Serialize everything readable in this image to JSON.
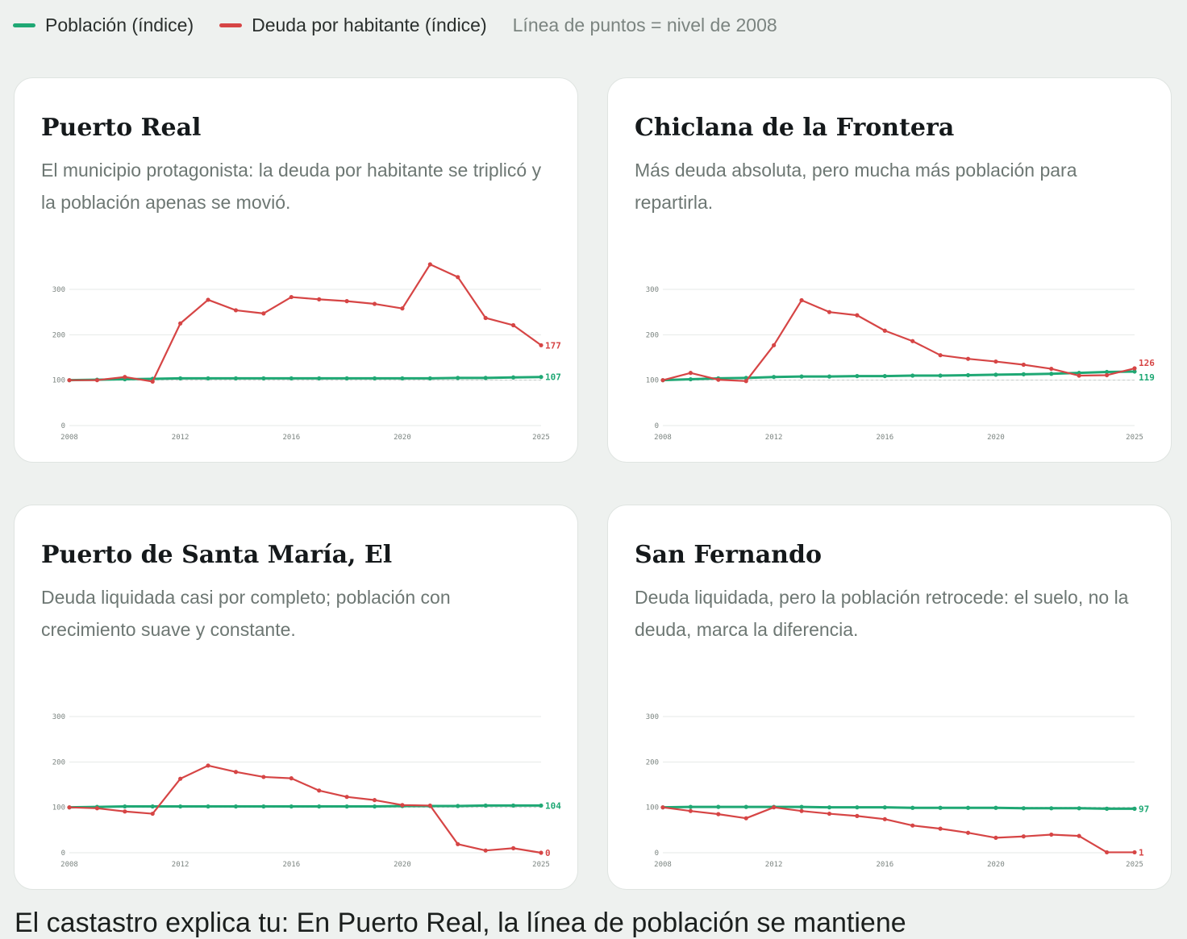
{
  "legend": {
    "poblacion": "Población (índice)",
    "deuda": "Deuda por habitante (índice)",
    "note": "Línea de puntos = nivel de 2008"
  },
  "colors": {
    "poblacion": "#1fa874",
    "deuda": "#d64545",
    "baseline": "#c6ccc9",
    "grid": "#e6e9e7"
  },
  "footer": {
    "text": "El castastro explica tu: En Puerto Real, la línea de población se mantiene"
  },
  "cards": [
    {
      "title": "Puerto Real",
      "subtitle": "El municipio protagonista: la deuda por habitante se triplicó y la población apenas se movió."
    },
    {
      "title": "Chiclana de la Frontera",
      "subtitle": "Más deuda absoluta, pero mucha más población para repartirla."
    },
    {
      "title": "Puerto de Santa María, El",
      "subtitle": "Deuda liquidada casi por completo; población con crecimiento suave y constante."
    },
    {
      "title": "San Fernando",
      "subtitle": "Deuda liquidada, pero la población retrocede: el suelo, no la deuda, marca la diferencia."
    }
  ],
  "chart_data": [
    {
      "type": "line",
      "title": "Puerto Real",
      "x": [
        2008,
        2009,
        2010,
        2011,
        2012,
        2013,
        2014,
        2015,
        2016,
        2017,
        2018,
        2019,
        2020,
        2021,
        2022,
        2023,
        2024,
        2025
      ],
      "xticks": [
        "2008",
        "2012",
        "2016",
        "2020",
        "2025"
      ],
      "yticks": [
        "0",
        "100",
        "200",
        "300"
      ],
      "ylim": [
        0,
        300
      ],
      "baseline": 100,
      "series": [
        {
          "name": "Población (índice)",
          "key": "poblacion",
          "values": [
            100,
            101,
            102,
            103,
            104,
            104,
            104,
            104,
            104,
            104,
            104,
            104,
            104,
            104,
            105,
            105,
            106,
            107
          ],
          "end_label": "107"
        },
        {
          "name": "Deuda por habitante (índice)",
          "key": "deuda",
          "values": [
            100,
            100,
            107,
            97,
            225,
            277,
            254,
            247,
            283,
            278,
            274,
            268,
            258,
            355,
            327,
            237,
            221,
            177
          ],
          "end_label": "177"
        }
      ]
    },
    {
      "type": "line",
      "title": "Chiclana de la Frontera",
      "x": [
        2008,
        2009,
        2010,
        2011,
        2012,
        2013,
        2014,
        2015,
        2016,
        2017,
        2018,
        2019,
        2020,
        2021,
        2022,
        2023,
        2024,
        2025
      ],
      "xticks": [
        "2008",
        "2012",
        "2016",
        "2020",
        "2025"
      ],
      "yticks": [
        "0",
        "100",
        "200",
        "300"
      ],
      "ylim": [
        0,
        300
      ],
      "baseline": 100,
      "series": [
        {
          "name": "Población (índice)",
          "key": "poblacion",
          "values": [
            100,
            102,
            104,
            105,
            107,
            108,
            108,
            109,
            109,
            110,
            110,
            111,
            112,
            113,
            114,
            116,
            118,
            119
          ],
          "end_label": "119"
        },
        {
          "name": "Deuda por habitante (índice)",
          "key": "deuda",
          "values": [
            100,
            116,
            101,
            98,
            177,
            276,
            250,
            243,
            209,
            186,
            155,
            147,
            141,
            134,
            125,
            110,
            111,
            126
          ],
          "end_label": "126"
        }
      ]
    },
    {
      "type": "line",
      "title": "Puerto de Santa María, El",
      "x": [
        2008,
        2009,
        2010,
        2011,
        2012,
        2013,
        2014,
        2015,
        2016,
        2017,
        2018,
        2019,
        2020,
        2021,
        2022,
        2023,
        2024,
        2025
      ],
      "xticks": [
        "2008",
        "2012",
        "2016",
        "2020",
        "2025"
      ],
      "yticks": [
        "0",
        "100",
        "200",
        "300"
      ],
      "ylim": [
        0,
        300
      ],
      "baseline": 100,
      "series": [
        {
          "name": "Población (índice)",
          "key": "poblacion",
          "values": [
            100,
            101,
            102,
            102,
            102,
            102,
            102,
            102,
            102,
            102,
            102,
            102,
            103,
            103,
            103,
            104,
            104,
            104
          ],
          "end_label": "104"
        },
        {
          "name": "Deuda por habitante (índice)",
          "key": "deuda",
          "values": [
            100,
            98,
            91,
            86,
            163,
            192,
            178,
            167,
            164,
            137,
            123,
            116,
            105,
            104,
            19,
            5,
            10,
            0
          ],
          "end_label": "0"
        }
      ]
    },
    {
      "type": "line",
      "title": "San Fernando",
      "x": [
        2008,
        2009,
        2010,
        2011,
        2012,
        2013,
        2014,
        2015,
        2016,
        2017,
        2018,
        2019,
        2020,
        2021,
        2022,
        2023,
        2024,
        2025
      ],
      "xticks": [
        "2008",
        "2012",
        "2016",
        "2020",
        "2025"
      ],
      "yticks": [
        "0",
        "100",
        "200",
        "300"
      ],
      "ylim": [
        0,
        300
      ],
      "baseline": 100,
      "series": [
        {
          "name": "Población (índice)",
          "key": "poblacion",
          "values": [
            100,
            101,
            101,
            101,
            101,
            101,
            100,
            100,
            100,
            99,
            99,
            99,
            99,
            98,
            98,
            98,
            97,
            97
          ],
          "end_label": "97"
        },
        {
          "name": "Deuda por habitante (índice)",
          "key": "deuda",
          "values": [
            100,
            92,
            85,
            76,
            100,
            92,
            86,
            81,
            74,
            60,
            53,
            44,
            33,
            36,
            40,
            37,
            1,
            1
          ],
          "end_label": "1"
        }
      ]
    }
  ]
}
